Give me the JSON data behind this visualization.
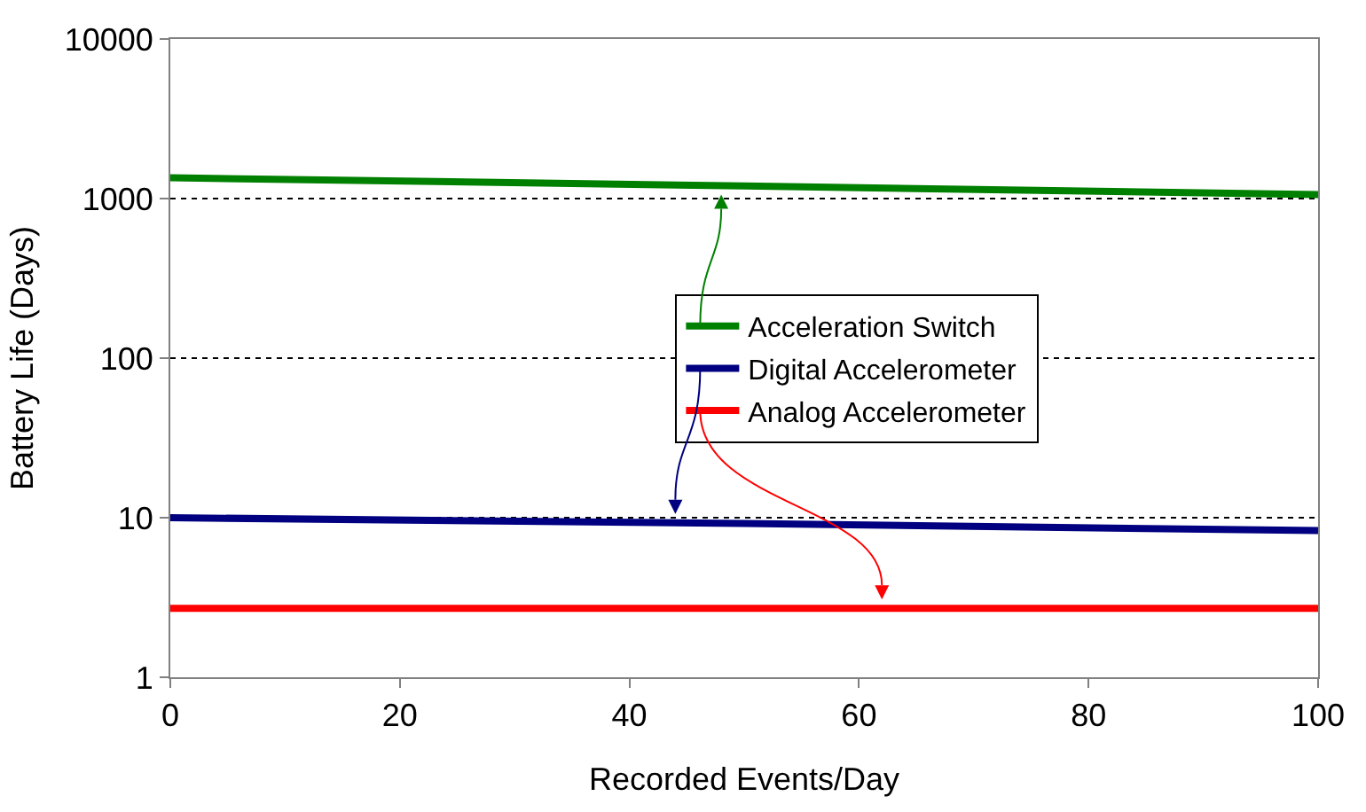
{
  "chart_data": {
    "type": "line",
    "xlabel": "Recorded Events/Day",
    "ylabel": "Battery Life (Days)",
    "x": [
      0,
      50,
      100
    ],
    "series": [
      {
        "name": "Acceleration Switch",
        "color": "#008000",
        "values": [
          1350,
          1200,
          1060
        ]
      },
      {
        "name": "Digital Accelerometer",
        "color": "#000080",
        "values": [
          10,
          9.2,
          8.3
        ]
      },
      {
        "name": "Analog Accelerometer",
        "color": "#ff0000",
        "values": [
          2.7,
          2.7,
          2.7
        ]
      }
    ],
    "xlim": [
      0,
      100
    ],
    "xticks": [
      0,
      20,
      40,
      60,
      80,
      100
    ],
    "ylim": [
      1,
      10000
    ],
    "yticks": [
      1,
      10,
      100,
      1000,
      10000
    ],
    "log": "y",
    "grid": "y",
    "legend": "right",
    "marker": "none",
    "line_style": "solid"
  }
}
